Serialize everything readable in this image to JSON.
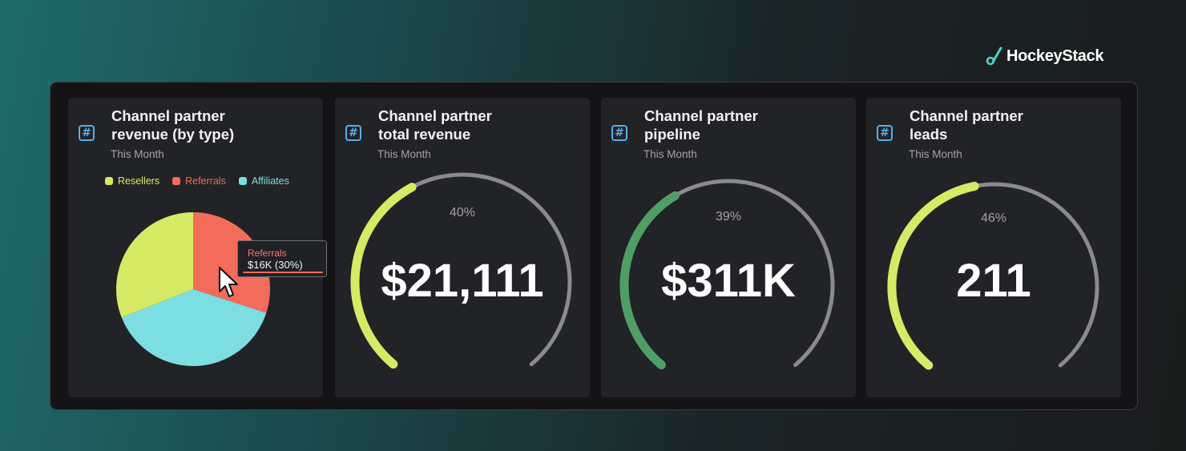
{
  "brand": {
    "name": "HockeyStack",
    "logo_icon": "hockey-stick-icon"
  },
  "colors": {
    "resellers": "#d6ea65",
    "referrals": "#f26b5b",
    "affiliates": "#7cdde2",
    "gauge_yellow": "#d6ea65",
    "gauge_green": "#4f9f64",
    "gauge_track": "#8a8a94",
    "icon_blue": "#5aaeea"
  },
  "cards": [
    {
      "icon": "hash-icon",
      "icon_glyph": "#",
      "title": "Channel partner\nrevenue (by type)",
      "subtitle": "This Month",
      "legend": [
        {
          "label": "Resellers",
          "color": "#d6ea65"
        },
        {
          "label": "Referrals",
          "color": "#f26b5b"
        },
        {
          "label": "Affiliates",
          "color": "#7cdde2"
        }
      ],
      "tooltip": {
        "name": "Referrals",
        "value": "$16K (30%)"
      }
    },
    {
      "icon": "hash-icon",
      "icon_glyph": "#",
      "title": "Channel partner\ntotal revenue",
      "subtitle": "This Month",
      "percent_label": "40%",
      "value": "$21,111"
    },
    {
      "icon": "hash-icon",
      "icon_glyph": "#",
      "title": "Channel partner\npipeline",
      "subtitle": "This Month",
      "percent_label": "39%",
      "value": "$311K"
    },
    {
      "icon": "hash-icon",
      "icon_glyph": "#",
      "title": "Channel partner\nleads",
      "subtitle": "This Month",
      "percent_label": "46%",
      "value": "211"
    }
  ],
  "chart_data": [
    {
      "type": "pie",
      "title": "Channel partner revenue (by type)",
      "categories": [
        "Resellers",
        "Referrals",
        "Affiliates"
      ],
      "values": [
        31,
        30,
        39
      ],
      "colors": [
        "#d6ea65",
        "#f26b5b",
        "#7cdde2"
      ],
      "legend": "top"
    },
    {
      "type": "gauge",
      "title": "Channel partner total revenue",
      "value": 0.4,
      "label": "40%",
      "center_value": "$21,111",
      "color": "#d6ea65"
    },
    {
      "type": "gauge",
      "title": "Channel partner pipeline",
      "value": 0.39,
      "label": "39%",
      "center_value": "$311K",
      "color": "#4f9f64"
    },
    {
      "type": "gauge",
      "title": "Channel partner leads",
      "value": 0.46,
      "label": "46%",
      "center_value": "211",
      "color": "#d6ea65"
    }
  ]
}
